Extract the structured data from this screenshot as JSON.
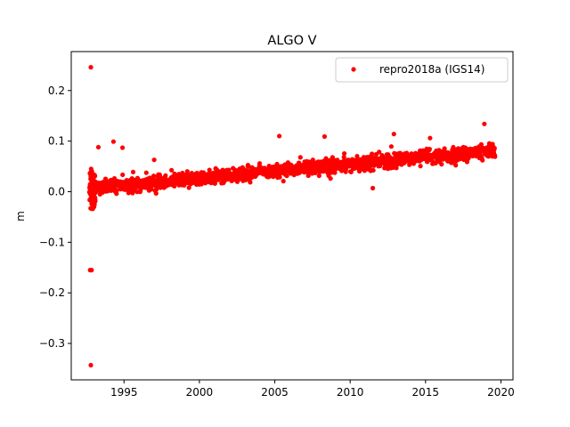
{
  "chart_data": {
    "type": "scatter",
    "title": "ALGO V",
    "xlabel": "",
    "ylabel": "m",
    "xlim": [
      1991.5,
      2020.8
    ],
    "ylim": [
      -0.372,
      0.277
    ],
    "xticks": [
      1995,
      2000,
      2005,
      2010,
      2015,
      2020
    ],
    "yticks": [
      -0.3,
      -0.2,
      -0.1,
      0.0,
      0.1,
      0.2
    ],
    "ytick_labels": [
      "−0.3",
      "−0.2",
      "−0.1",
      "0.0",
      "0.1",
      "0.2"
    ],
    "grid": false,
    "legend": {
      "position": "top-right",
      "entries": [
        "repro2018a (IGS14)"
      ]
    },
    "series": [
      {
        "name": "repro2018a (IGS14)",
        "color": "#ff0000",
        "trend": {
          "x": [
            1992.7,
            2019.6
          ],
          "y": [
            0.006,
            0.081
          ]
        },
        "outliers": {
          "x": [
            1992.8,
            1992.75,
            1992.85,
            1992.8,
            1993.3,
            1994.3,
            1994.9,
            1997.0,
            2005.3,
            2008.3,
            2011.5,
            2012.9,
            2015.3,
            2018.9
          ],
          "y": [
            0.246,
            -0.155,
            -0.155,
            -0.343,
            0.088,
            0.099,
            0.087,
            0.063,
            0.11,
            0.109,
            0.007,
            0.114,
            0.106,
            0.134
          ]
        }
      }
    ]
  }
}
